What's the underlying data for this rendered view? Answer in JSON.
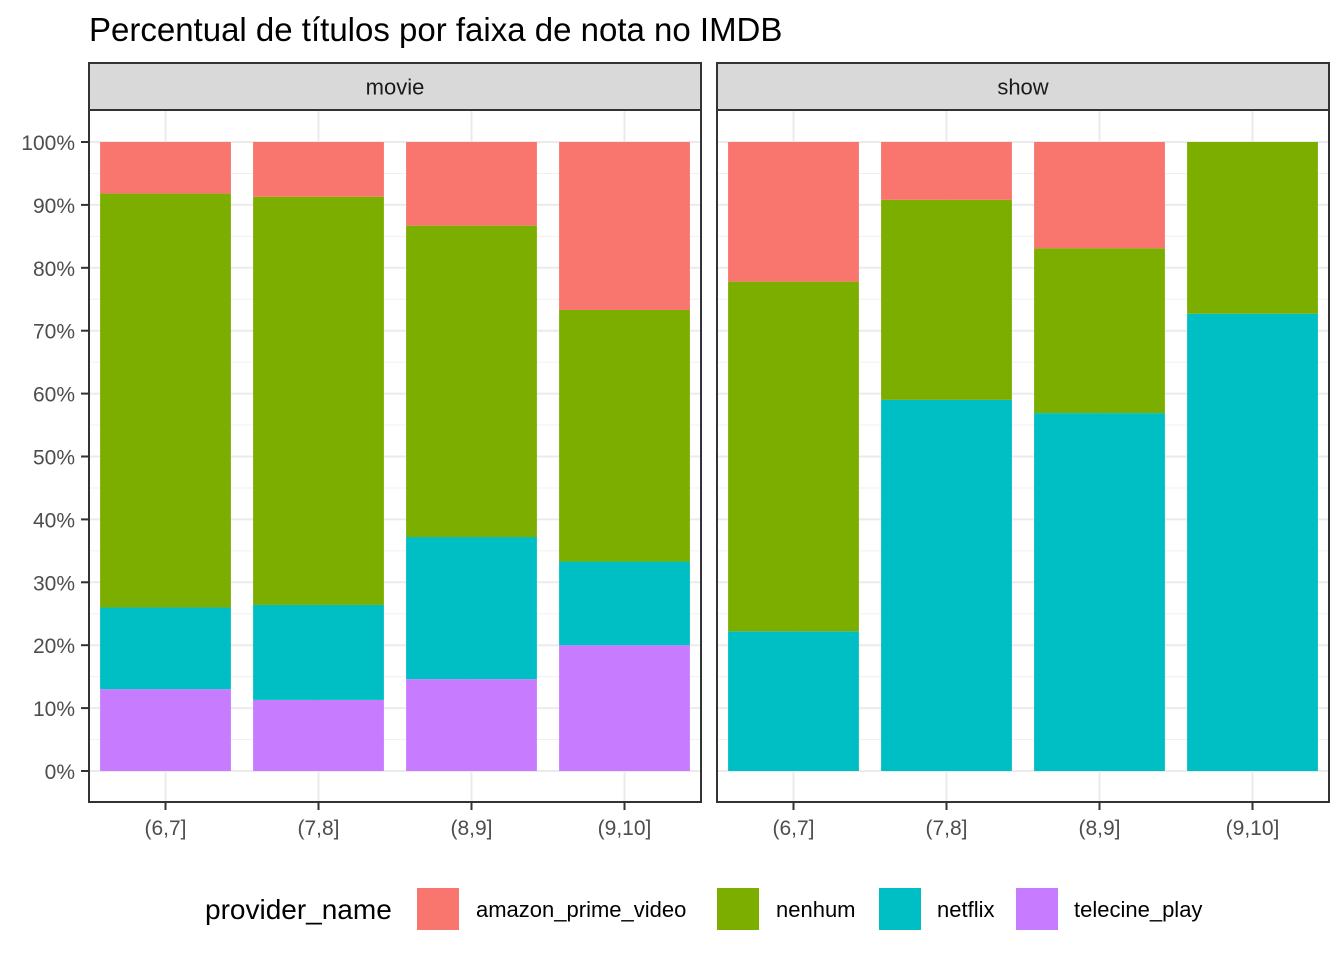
{
  "chart_data": {
    "type": "bar",
    "stacked": "percent",
    "title": "Percentual de títulos por faixa de nota no IMDB",
    "xlabel": "",
    "ylabel": "",
    "ylim": [
      0,
      100
    ],
    "y_ticks": [
      "0%",
      "10%",
      "20%",
      "30%",
      "40%",
      "50%",
      "60%",
      "70%",
      "80%",
      "90%",
      "100%"
    ],
    "categories": [
      "(6,7]",
      "(7,8]",
      "(8,9]",
      "(9,10]"
    ],
    "legend": {
      "title": "provider_name",
      "position": "bottom",
      "entries": [
        {
          "name": "amazon_prime_video",
          "color": "#F8766D"
        },
        {
          "name": "nenhum",
          "color": "#7CAE00"
        },
        {
          "name": "netflix",
          "color": "#00BFC4"
        },
        {
          "name": "telecine_play",
          "color": "#C77CFF"
        }
      ]
    },
    "stack_order_bottom_to_top": [
      "telecine_play",
      "netflix",
      "nenhum",
      "amazon_prime_video"
    ],
    "grid": true,
    "panels": [
      {
        "label": "movie",
        "series": [
          {
            "name": "amazon_prime_video",
            "values": [
              8.2,
              8.7,
              13.3,
              26.7
            ]
          },
          {
            "name": "nenhum",
            "values": [
              65.8,
              64.9,
              49.5,
              40.0
            ]
          },
          {
            "name": "netflix",
            "values": [
              13.0,
              15.1,
              22.6,
              13.3
            ]
          },
          {
            "name": "telecine_play",
            "values": [
              13.0,
              11.3,
              14.6,
              20.0
            ]
          }
        ]
      },
      {
        "label": "show",
        "series": [
          {
            "name": "amazon_prime_video",
            "values": [
              22.2,
              9.2,
              16.9,
              0.0
            ]
          },
          {
            "name": "nenhum",
            "values": [
              55.6,
              31.8,
              26.2,
              27.3
            ]
          },
          {
            "name": "netflix",
            "values": [
              22.2,
              59.0,
              56.9,
              72.7
            ]
          },
          {
            "name": "telecine_play",
            "values": [
              0.0,
              0.0,
              0.0,
              0.0
            ]
          }
        ]
      }
    ]
  }
}
